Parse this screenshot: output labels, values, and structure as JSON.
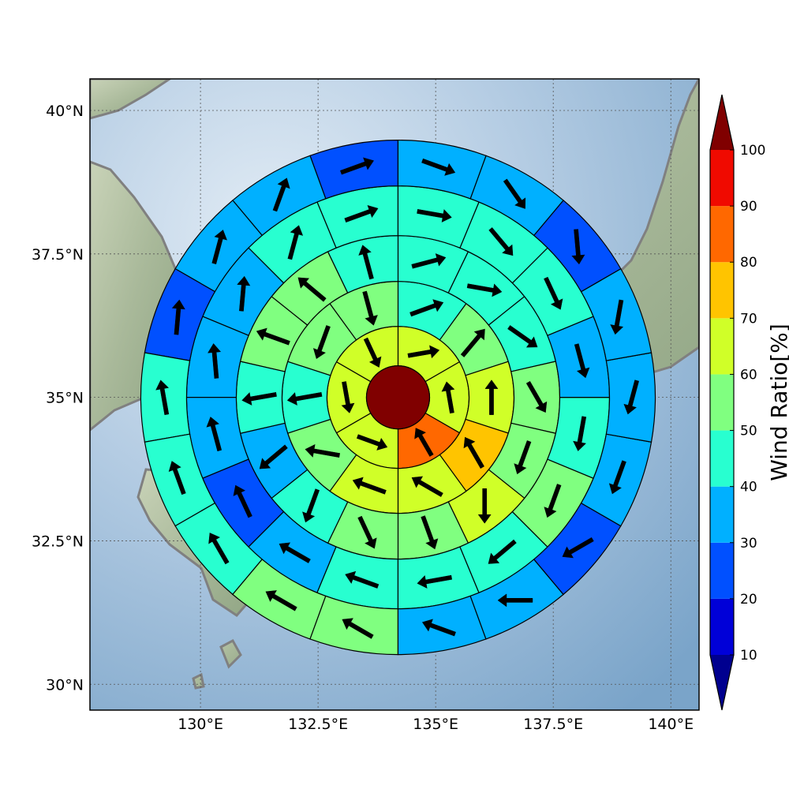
{
  "chart_data": {
    "type": "heatmap",
    "title": "",
    "projection": "map",
    "lon_range": [
      127.65,
      140.6
    ],
    "lat_range": [
      29.55,
      40.55
    ],
    "x_ticks": [
      {
        "value": 130,
        "label": "130°E"
      },
      {
        "value": 132.5,
        "label": "132.5°E"
      },
      {
        "value": 135,
        "label": "135°E"
      },
      {
        "value": 137.5,
        "label": "137.5°E"
      },
      {
        "value": 140,
        "label": "140°E"
      }
    ],
    "y_ticks": [
      {
        "value": 30,
        "label": "30°N"
      },
      {
        "value": 32.5,
        "label": "32.5°N"
      },
      {
        "value": 35,
        "label": "35°N"
      },
      {
        "value": 37.5,
        "label": "37.5°N"
      },
      {
        "value": 40,
        "label": "40°N"
      }
    ],
    "grid": true,
    "polar_grid": {
      "center_lon": 134.2,
      "center_lat": 35.0,
      "center_value": 100,
      "rings": [
        {
          "ring": 1,
          "sectors": 6,
          "start_angle": 90,
          "values": [
            65,
            65,
            85,
            65,
            65,
            65
          ],
          "wind_dir": [
            80,
            350,
            330,
            110,
            170,
            155
          ]
        },
        {
          "ring": 2,
          "sectors": 10,
          "start_angle": 90,
          "values": [
            45,
            55,
            65,
            75,
            65,
            65,
            55,
            45,
            55,
            55
          ],
          "wind_dir": [
            70,
            40,
            0,
            330,
            300,
            290,
            280,
            260,
            200,
            165
          ]
        },
        {
          "ring": 3,
          "sectors": 14,
          "start_angle": 90,
          "values": [
            45,
            45,
            45,
            55,
            55,
            65,
            55,
            55,
            45,
            35,
            45,
            55,
            55,
            45
          ],
          "wind_dir": [
            75,
            100,
            125,
            150,
            200,
            180,
            160,
            155,
            200,
            230,
            260,
            290,
            310,
            345
          ]
        },
        {
          "ring": 4,
          "sectors": 16,
          "start_angle": 90,
          "values": [
            45,
            45,
            35,
            35,
            35,
            25,
            35,
            45,
            45,
            45,
            55,
            45,
            35,
            45,
            45,
            45
          ],
          "wind_dir": [
            70,
            15,
            5,
            355,
            345,
            335,
            300,
            290,
            260,
            230,
            200,
            190,
            165,
            155,
            140,
            100
          ],
          "value_order": "counter-clockwise"
        },
        {
          "ring": 5,
          "sectors": 18,
          "start_angle": 90,
          "values": [
            25,
            35,
            35,
            25,
            45,
            45,
            45,
            55,
            55,
            35,
            35,
            25,
            35,
            35,
            35,
            25,
            35,
            35
          ],
          "wind_dir": [
            70,
            20,
            15,
            5,
            350,
            340,
            330,
            300,
            300,
            290,
            270,
            240,
            200,
            195,
            190,
            175,
            145,
            110
          ],
          "value_order": "counter-clockwise"
        }
      ]
    },
    "colorbar": {
      "label": "Wind Ratio[%]",
      "ticks": [
        "10",
        "20",
        "30",
        "40",
        "50",
        "60",
        "70",
        "80",
        "90",
        "100"
      ],
      "levels": [
        10,
        20,
        30,
        40,
        50,
        60,
        70,
        80,
        90,
        100
      ],
      "colors": [
        "#0000d8",
        "#0050ff",
        "#00b0ff",
        "#28ffd0",
        "#80ff80",
        "#d0ff28",
        "#ffc400",
        "#ff6800",
        "#f00a00"
      ],
      "under_color": "#00008f",
      "over_color": "#800000",
      "extend": "both"
    }
  }
}
